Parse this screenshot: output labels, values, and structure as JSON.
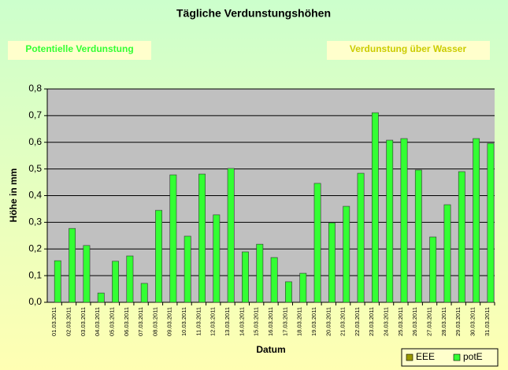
{
  "chart_data": {
    "type": "bar",
    "title": "Tägliche Verdunstungshöhen",
    "annotations": [
      "Potentielle Verdunstung",
      "Verdunstung über Wasser"
    ],
    "x_label": "Datum",
    "y_label": "Höhe in mm",
    "categories": [
      "01.03.2011",
      "02.03.2011",
      "03.03.2011",
      "04.03.2011",
      "05.03.2011",
      "06.03.2011",
      "07.03.2011",
      "08.03.2011",
      "09.03.2011",
      "10.03.2011",
      "11.03.2011",
      "12.03.2011",
      "13.03.2011",
      "14.03.2011",
      "15.03.2011",
      "16.03.2011",
      "17.03.2011",
      "18.03.2011",
      "19.03.2011",
      "20.03.2011",
      "21.03.2011",
      "22.03.2011",
      "23.03.2011",
      "24.03.2011",
      "25.03.2011",
      "26.03.2011",
      "27.03.2011",
      "28.03.2011",
      "29.03.2011",
      "30.03.2011",
      "31.03.2011"
    ],
    "series": [
      {
        "name": "EEE",
        "color": "#999900",
        "values": [
          null,
          null,
          null,
          null,
          null,
          null,
          null,
          null,
          null,
          null,
          null,
          null,
          null,
          null,
          null,
          null,
          null,
          null,
          null,
          null,
          null,
          null,
          null,
          null,
          null,
          null,
          null,
          null,
          null,
          null,
          null
        ]
      },
      {
        "name": "potE",
        "color": "#33ff33",
        "values": [
          0.156,
          0.277,
          0.213,
          0.035,
          0.154,
          0.174,
          0.071,
          0.345,
          0.478,
          0.248,
          0.481,
          0.328,
          0.502,
          0.189,
          0.218,
          0.168,
          0.077,
          0.109,
          0.446,
          0.298,
          0.36,
          0.484,
          0.711,
          0.608,
          0.614,
          0.496,
          0.245,
          0.366,
          0.49,
          0.614,
          0.596
        ]
      }
    ],
    "ylim": [
      0,
      0.8
    ],
    "yticks": [
      {
        "value": 0,
        "label": "0,0"
      },
      {
        "value": 0.1,
        "label": "0,1"
      },
      {
        "value": 0.2,
        "label": "0,2"
      },
      {
        "value": 0.3,
        "label": "0,3"
      },
      {
        "value": 0.4,
        "label": "0,4"
      },
      {
        "value": 0.5,
        "label": "0,5"
      },
      {
        "value": 0.6,
        "label": "0,6"
      },
      {
        "value": 0.7,
        "label": "0,7"
      },
      {
        "value": 0.8,
        "label": "0,8"
      }
    ],
    "grid": true,
    "legend": "bottom-right"
  }
}
